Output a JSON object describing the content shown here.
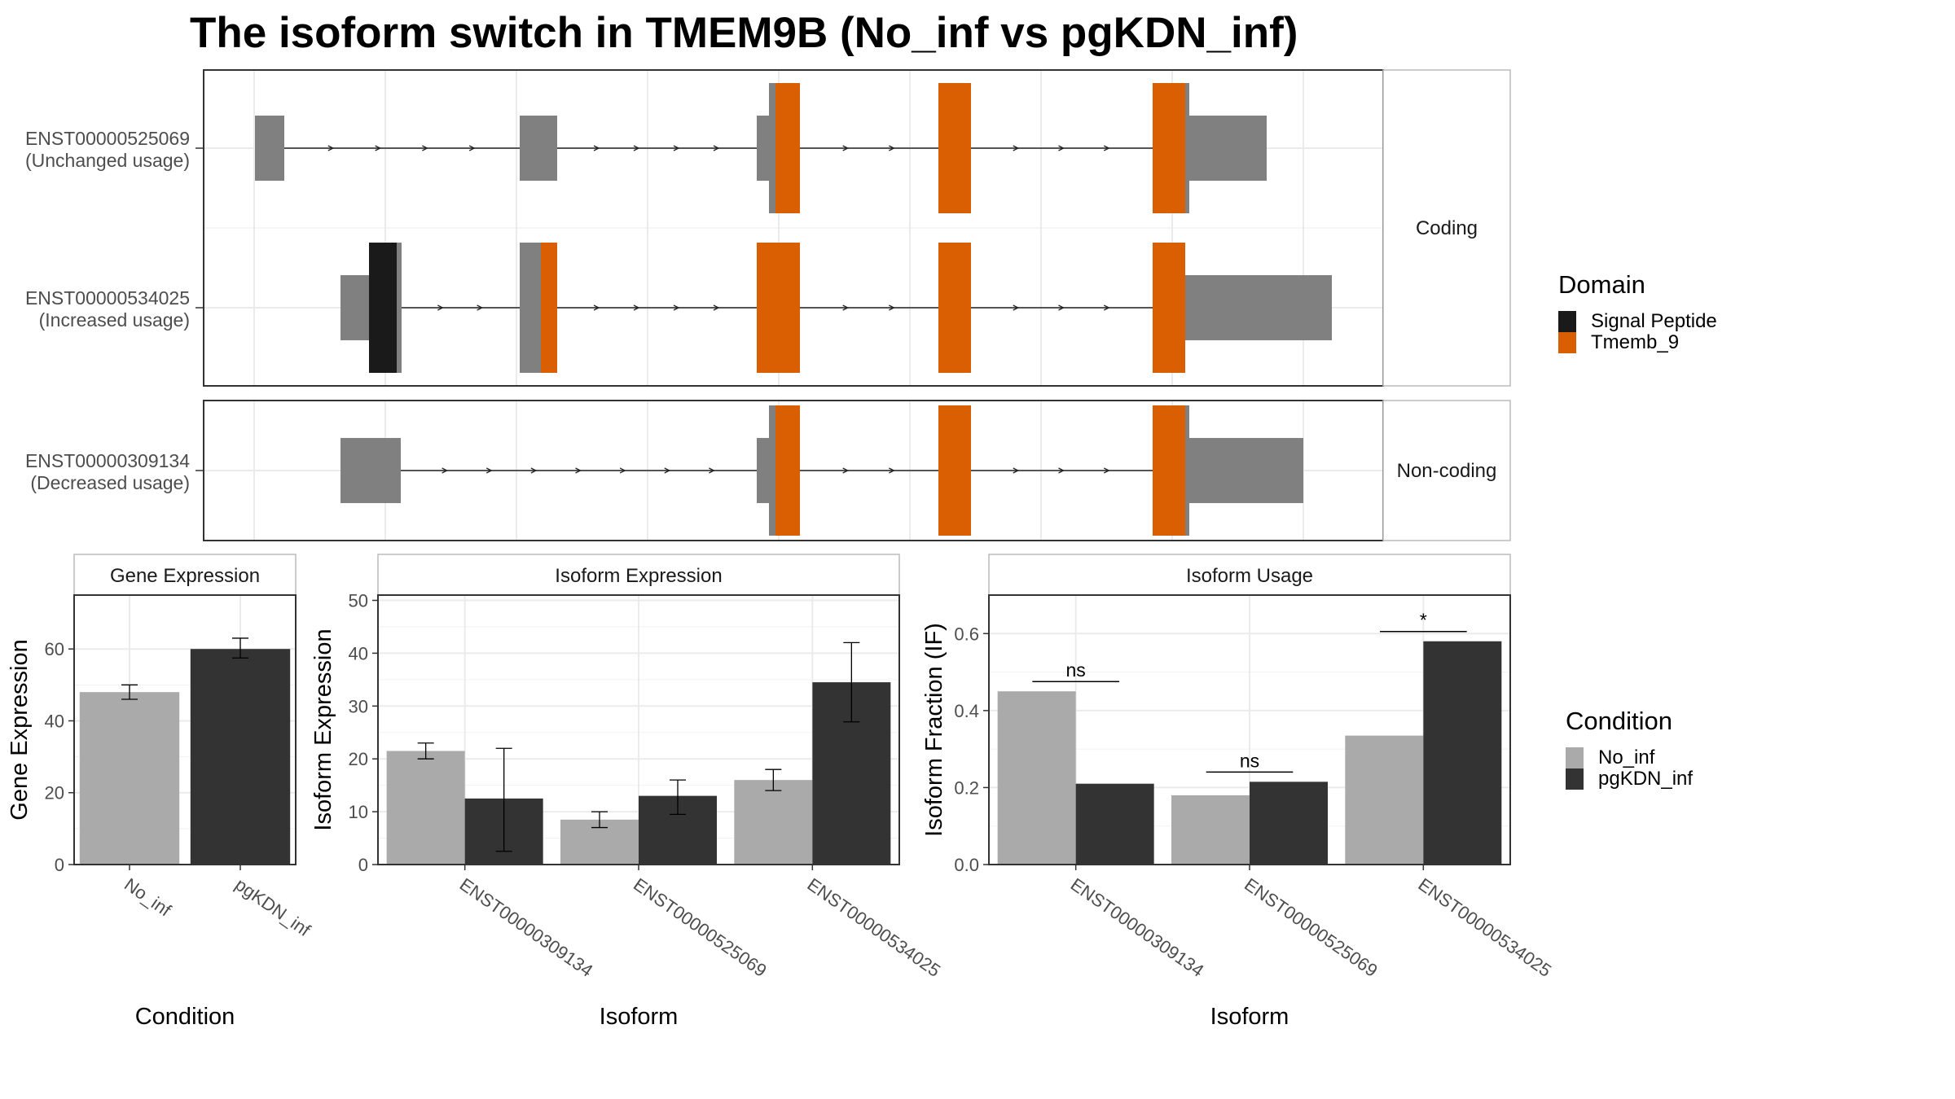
{
  "title": "The isoform switch in TMEM9B (No_inf vs pgKDN_inf)",
  "colors": {
    "utr": "#808080",
    "signal_peptide": "#1a1a1a",
    "tmemb_9": "#d95f02",
    "no_inf": "#aaaaaa",
    "pgkdn_inf": "#333333"
  },
  "structure": {
    "facets": [
      {
        "label": "Coding",
        "transcripts": [
          {
            "id": "ENST00000525069",
            "usage": "(Unchanged usage)"
          },
          {
            "id": "ENST00000534025",
            "usage": "(Increased usage)"
          }
        ]
      },
      {
        "label": "Non-coding",
        "transcripts": [
          {
            "id": "ENST00000309134",
            "usage": "(Decreased usage)"
          }
        ]
      }
    ]
  },
  "legend_domain": {
    "title": "Domain",
    "items": [
      {
        "label": "Signal Peptide",
        "color": "#1a1a1a"
      },
      {
        "label": "Tmemb_9",
        "color": "#d95f02"
      }
    ]
  },
  "legend_condition": {
    "title": "Condition",
    "items": [
      {
        "label": "No_inf",
        "color": "#aaaaaa"
      },
      {
        "label": "pgKDN_inf",
        "color": "#333333"
      }
    ]
  },
  "chart_data": [
    {
      "type": "bar",
      "title": "Gene Expression",
      "xlabel": "Condition",
      "ylabel": "Gene Expression",
      "categories": [
        "No_inf",
        "pgKDN_inf"
      ],
      "values": [
        48,
        60
      ],
      "error": [
        [
          46,
          50
        ],
        [
          57.5,
          63
        ]
      ],
      "ylim": [
        0,
        75
      ],
      "yticks": [
        0,
        20,
        40,
        60
      ]
    },
    {
      "type": "bar",
      "title": "Isoform Expression",
      "xlabel": "Isoform",
      "ylabel": "Isoform Expression",
      "categories": [
        "ENST00000309134",
        "ENST00000525069",
        "ENST00000534025"
      ],
      "series": [
        {
          "name": "No_inf",
          "values": [
            21.5,
            8.5,
            16
          ],
          "error": [
            [
              20,
              23
            ],
            [
              7,
              10
            ],
            [
              14,
              18
            ]
          ]
        },
        {
          "name": "pgKDN_inf",
          "values": [
            12.5,
            13,
            34.5
          ],
          "error": [
            [
              2.5,
              22
            ],
            [
              9.5,
              16
            ],
            [
              27,
              42
            ]
          ]
        }
      ],
      "ylim": [
        0,
        51
      ],
      "yticks": [
        0,
        10,
        20,
        30,
        40,
        50
      ]
    },
    {
      "type": "bar",
      "title": "Isoform Usage",
      "xlabel": "Isoform",
      "ylabel": "Isoform Fraction (IF)",
      "categories": [
        "ENST00000309134",
        "ENST00000525069",
        "ENST00000534025"
      ],
      "series": [
        {
          "name": "No_inf",
          "values": [
            0.45,
            0.18,
            0.335
          ]
        },
        {
          "name": "pgKDN_inf",
          "values": [
            0.21,
            0.215,
            0.58
          ]
        }
      ],
      "significance": [
        "ns",
        "ns",
        "*"
      ],
      "ylim": [
        0,
        0.7
      ],
      "yticks": [
        "0.0",
        "0.2",
        "0.4",
        "0.6"
      ]
    }
  ]
}
